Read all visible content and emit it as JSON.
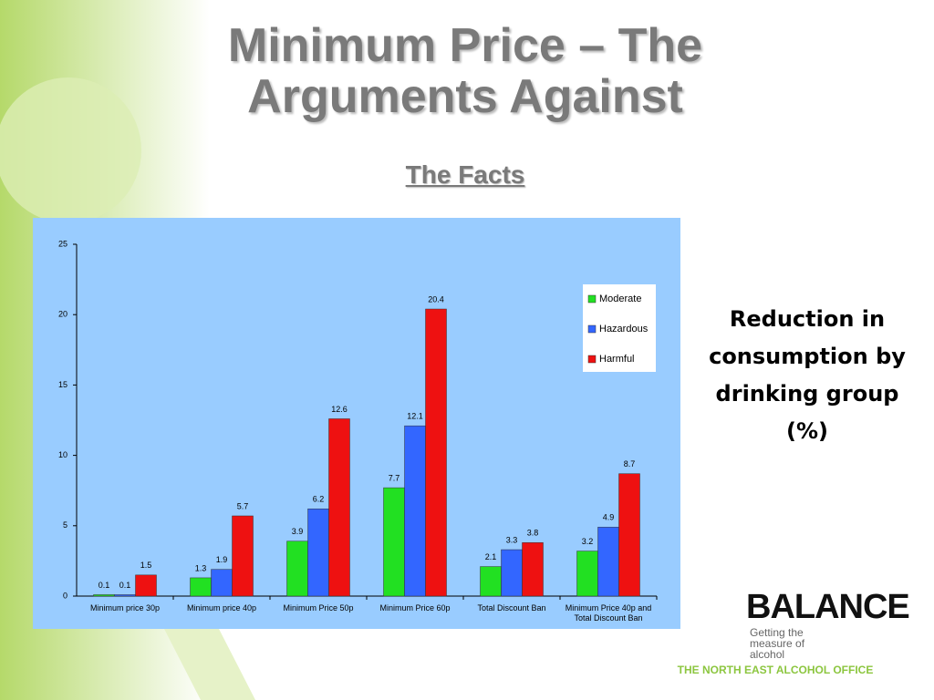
{
  "title": "Minimum Price – The Arguments Against",
  "subtitle": "The Facts",
  "caption": "Reduction in consumption by drinking group (%)",
  "logo": {
    "name": "BALANCE",
    "tagline": "Getting the measure of alcohol"
  },
  "footer": "THE NORTH EAST ALCOHOL OFFICE",
  "chart_data": {
    "type": "bar",
    "categories": [
      "Minimum price 30p",
      "Minimum price 40p",
      "Minimum Price 50p",
      "Minimum Price 60p",
      "Total Discount Ban",
      "Minimum Price 40p and Total Discount Ban"
    ],
    "series": [
      {
        "name": "Moderate",
        "color": "#22e022",
        "values": [
          0.1,
          1.3,
          3.9,
          7.7,
          2.1,
          3.2
        ]
      },
      {
        "name": "Hazardous",
        "color": "#3366ff",
        "values": [
          0.1,
          1.9,
          6.2,
          12.1,
          3.3,
          4.9
        ]
      },
      {
        "name": "Harmful",
        "color": "#ee1111",
        "values": [
          1.5,
          5.7,
          12.6,
          20.4,
          3.8,
          8.7
        ]
      }
    ],
    "ylim": [
      0,
      25
    ],
    "yticks": [
      0,
      5,
      10,
      15,
      20,
      25
    ],
    "grid": false,
    "legend": "top-right"
  }
}
